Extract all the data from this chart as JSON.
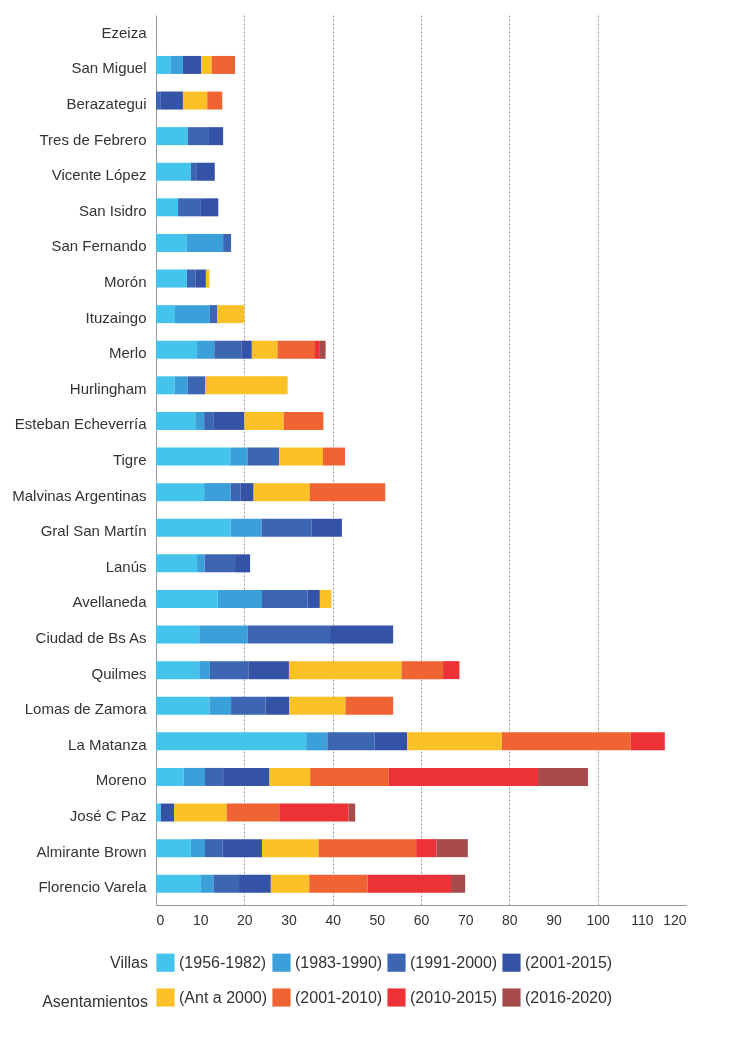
{
  "chart_data": {
    "type": "bar",
    "orientation": "horizontal",
    "stacked": true,
    "categories": [
      "Ezeiza",
      "San Miguel",
      "Berazategui",
      "Tres de Febrero",
      "Vicente López",
      "San Isidro",
      "San Fernando",
      "Morón",
      "Ituzaingo",
      "Merlo",
      "Hurlingham",
      "Esteban Echeverría",
      "Tigre",
      "Malvinas Argentinas",
      "Gral San Martín",
      "Lanús",
      "Avellaneda",
      "Ciudad de Bs As",
      "Quilmes",
      "Lomas de Zamora",
      "La Matanza",
      "Moreno",
      "José C Paz",
      "Almirante Brown",
      "Florencio Varela"
    ],
    "series": [
      {
        "name": "(1956-1982)",
        "color": "#44c4ec",
        "values": [
          null,
          3.3,
          null,
          7.2,
          7.9,
          5.0,
          6.9,
          7.0,
          4.3,
          9.3,
          4.2,
          8.9,
          16.8,
          10.9,
          16.9,
          9.3,
          14.0,
          9.8,
          9.8,
          12.1,
          34.0,
          6.3,
          1.1,
          7.9,
          10.2
        ]
      },
      {
        "name": "(1983-1990)",
        "color": "#3b9fd9",
        "values": [
          null,
          2.8,
          null,
          null,
          null,
          null,
          8.3,
          null,
          7.9,
          3.9,
          3.0,
          2.0,
          3.9,
          6.0,
          7.0,
          1.7,
          10.0,
          11.0,
          2.4,
          4.9,
          4.8,
          4.8,
          null,
          3.2,
          2.8
        ]
      },
      {
        "name": "(1991-2000)",
        "color": "#3c66b2",
        "values": [
          null,
          null,
          1.1,
          4.8,
          1.2,
          5.0,
          1.8,
          2.0,
          1.7,
          6.1,
          3.9,
          2.2,
          7.2,
          2.2,
          11.3,
          6.9,
          10.3,
          18.6,
          8.7,
          7.8,
          10.7,
          4.1,
          null,
          4.0,
          5.8
        ]
      },
      {
        "name": "(2001-2015)",
        "color": "#3553a6",
        "values": [
          null,
          4.1,
          5.0,
          3.2,
          4.2,
          4.1,
          null,
          2.3,
          null,
          2.4,
          null,
          6.9,
          null,
          3.0,
          6.9,
          3.4,
          2.8,
          14.3,
          9.2,
          5.4,
          7.4,
          10.5,
          3.0,
          8.9,
          7.2
        ]
      },
      {
        "name": "(Ant a 2000)",
        "color": "#fcc127",
        "values": [
          null,
          2.4,
          5.5,
          null,
          null,
          null,
          null,
          0.8,
          6.1,
          5.8,
          18.7,
          8.9,
          9.9,
          12.7,
          null,
          null,
          2.6,
          null,
          25.5,
          12.7,
          21.4,
          9.2,
          11.9,
          12.8,
          8.7
        ]
      },
      {
        "name": "(2001-2010)",
        "color": "#f06433",
        "values": [
          null,
          5.3,
          3.4,
          null,
          null,
          null,
          null,
          null,
          null,
          8.5,
          null,
          9.0,
          5.0,
          17.1,
          null,
          null,
          null,
          null,
          9.4,
          10.8,
          29.2,
          17.8,
          11.9,
          22.1,
          13.2
        ]
      },
      {
        "name": "(2010-2015)",
        "color": "#ec3237",
        "values": [
          null,
          null,
          null,
          null,
          null,
          null,
          null,
          null,
          null,
          1.1,
          null,
          null,
          null,
          null,
          null,
          null,
          null,
          null,
          3.7,
          null,
          7.7,
          33.8,
          15.7,
          4.6,
          18.9
        ]
      },
      {
        "name": "(2016-2020)",
        "color": "#a64a4c",
        "values": [
          null,
          null,
          null,
          null,
          null,
          null,
          null,
          null,
          null,
          1.3,
          null,
          null,
          null,
          null,
          null,
          null,
          null,
          null,
          null,
          null,
          null,
          11.3,
          1.5,
          7.1,
          3.2
        ]
      }
    ],
    "xlim": [
      0,
      120
    ],
    "xticks": [
      0,
      10,
      20,
      30,
      40,
      50,
      60,
      70,
      80,
      90,
      100,
      110,
      120
    ],
    "grid": "x",
    "legend": "bottom",
    "annotations": [
      "Villas",
      "Asentamientos"
    ]
  }
}
